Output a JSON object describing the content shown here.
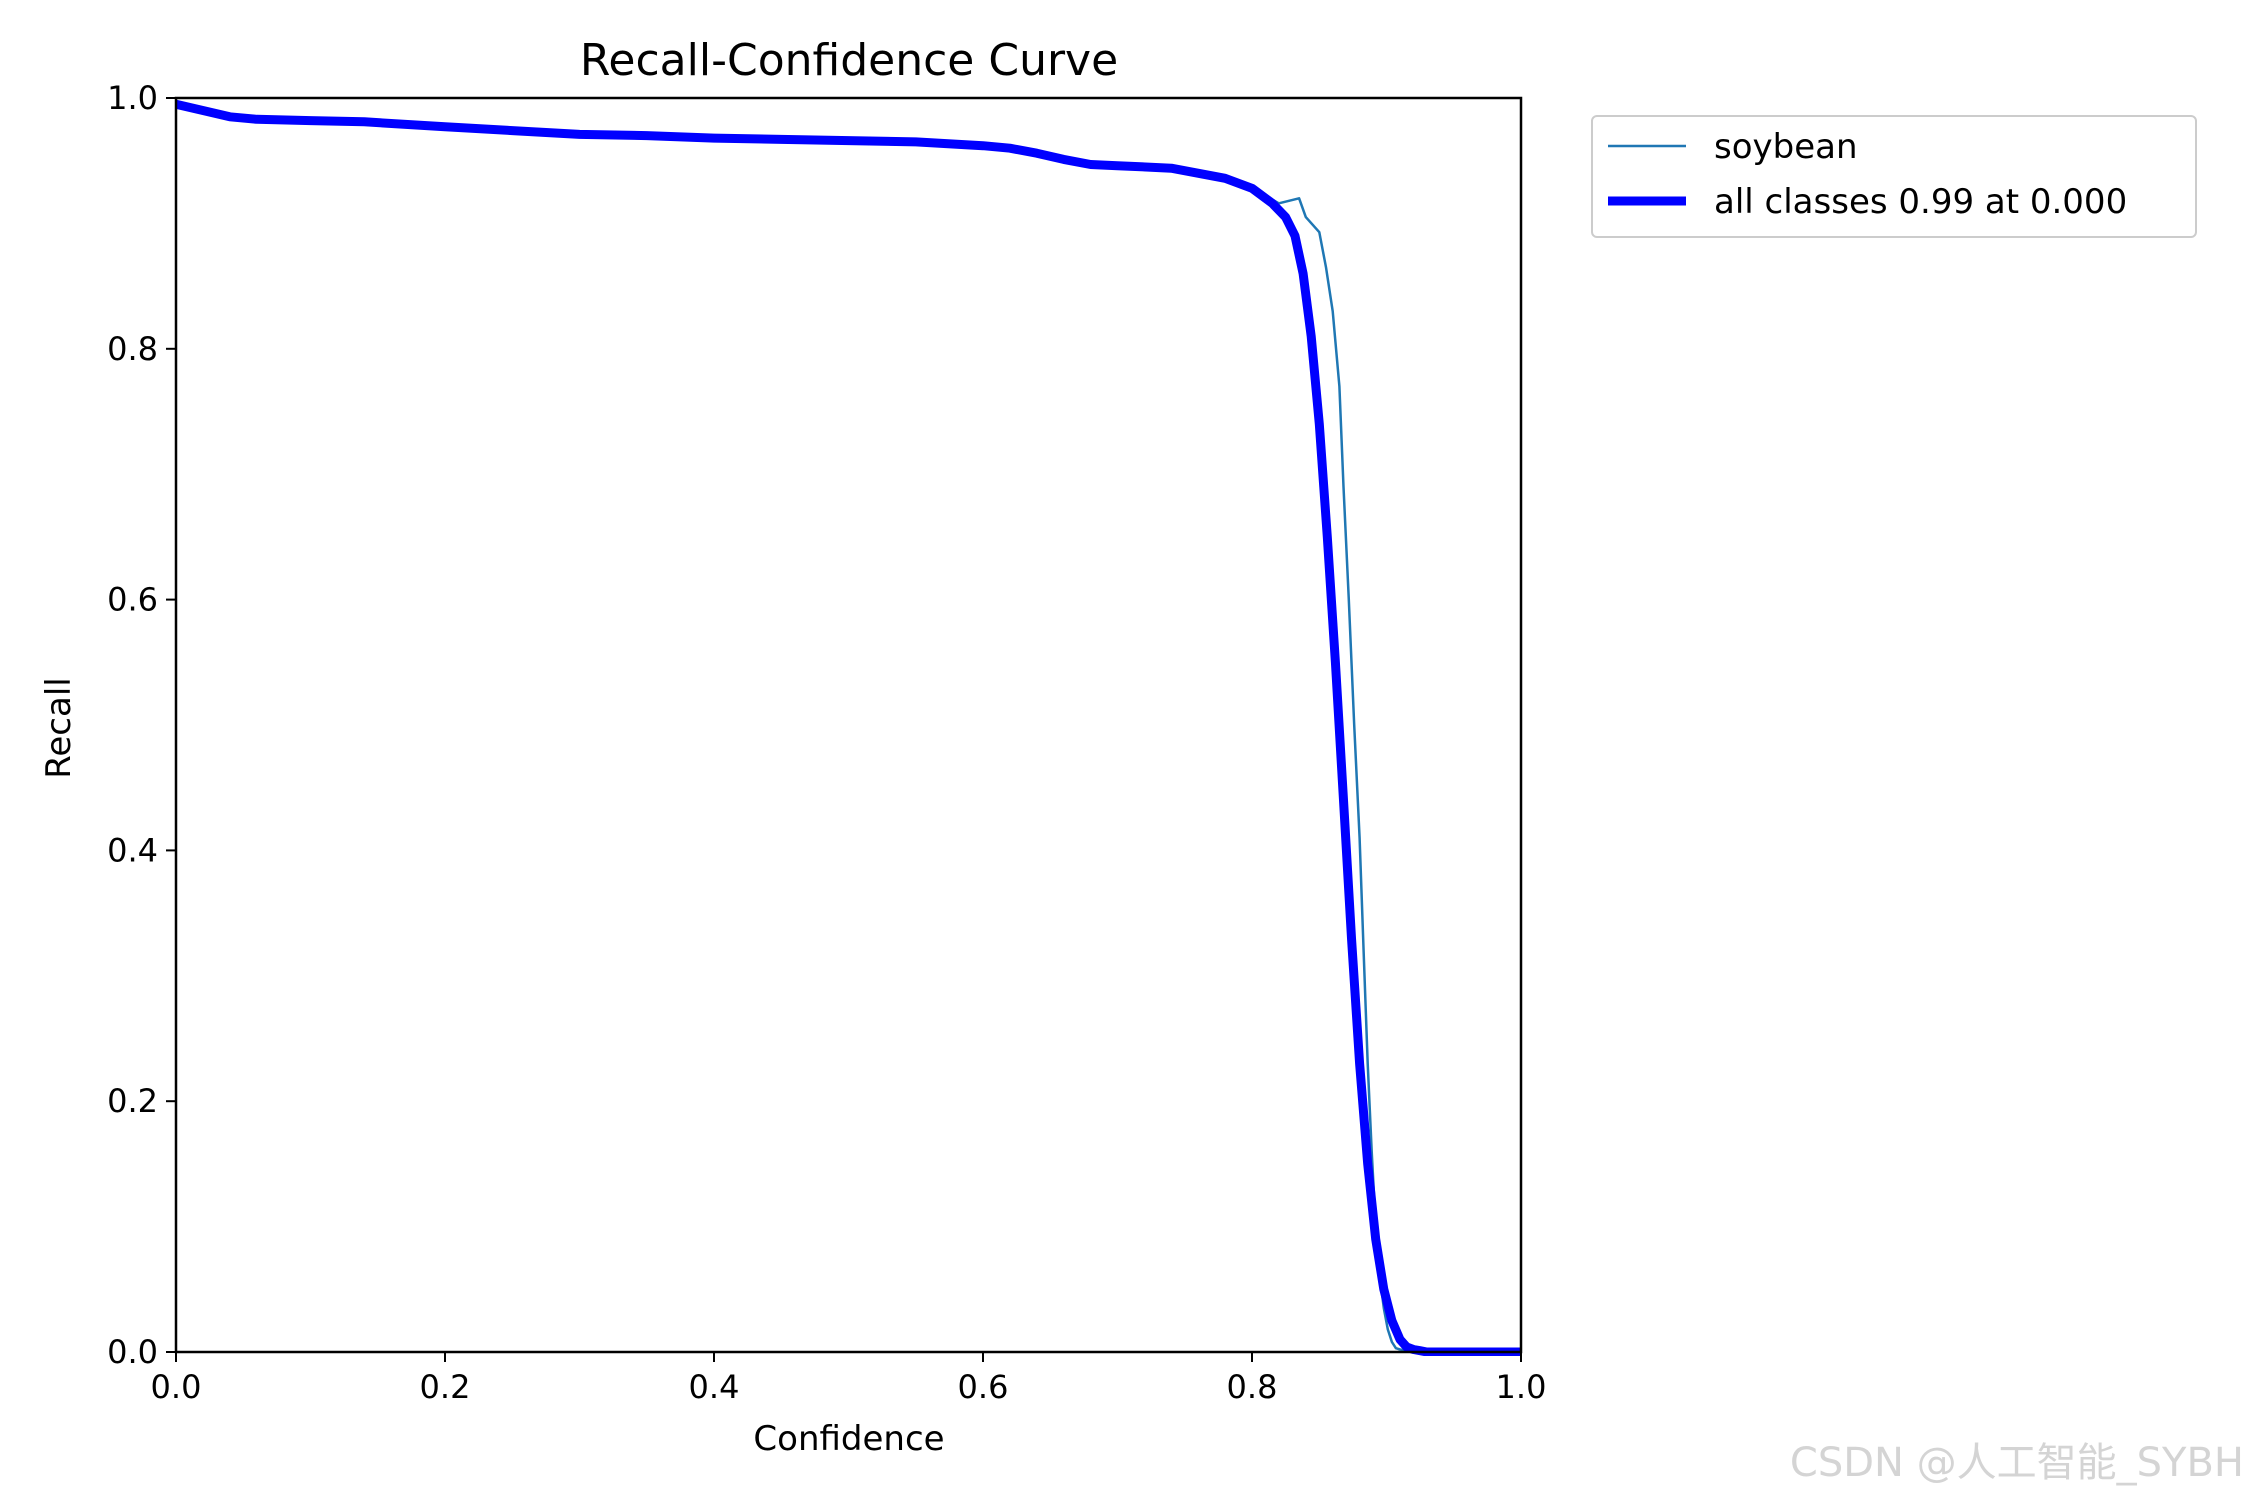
{
  "chart_data": {
    "type": "line",
    "title": "Recall-Confidence Curve",
    "xlabel": "Confidence",
    "ylabel": "Recall",
    "xlim": [
      0.0,
      1.0
    ],
    "ylim": [
      0.0,
      1.0
    ],
    "xticks": [
      "0.0",
      "0.2",
      "0.4",
      "0.6",
      "0.8",
      "1.0"
    ],
    "yticks": [
      "0.0",
      "0.2",
      "0.4",
      "0.6",
      "0.8",
      "1.0"
    ],
    "grid": false,
    "legend_position": "outside-upper-right",
    "series": [
      {
        "name": "soybean",
        "color": "#1f77b4",
        "x": [
          0.0,
          0.02,
          0.04,
          0.06,
          0.1,
          0.14,
          0.2,
          0.25,
          0.3,
          0.35,
          0.4,
          0.45,
          0.5,
          0.55,
          0.6,
          0.62,
          0.64,
          0.66,
          0.68,
          0.7,
          0.74,
          0.78,
          0.8,
          0.82,
          0.835,
          0.84,
          0.85,
          0.855,
          0.86,
          0.865,
          0.868,
          0.872,
          0.876,
          0.88,
          0.883,
          0.886,
          0.889,
          0.892,
          0.895,
          0.898,
          0.901,
          0.904,
          0.907,
          0.91,
          0.915,
          0.92,
          0.93,
          0.95,
          1.0
        ],
        "y": [
          0.995,
          0.99,
          0.985,
          0.983,
          0.982,
          0.981,
          0.977,
          0.974,
          0.971,
          0.97,
          0.968,
          0.967,
          0.966,
          0.965,
          0.962,
          0.96,
          0.956,
          0.951,
          0.947,
          0.946,
          0.944,
          0.936,
          0.928,
          0.916,
          0.92,
          0.905,
          0.893,
          0.865,
          0.83,
          0.77,
          0.69,
          0.6,
          0.5,
          0.41,
          0.32,
          0.23,
          0.16,
          0.1,
          0.06,
          0.035,
          0.018,
          0.008,
          0.003,
          0.002,
          0.001,
          0.0,
          0.0,
          0.0,
          0.0
        ]
      },
      {
        "name": "all classes 0.99 at 0.000",
        "color": "#0000ff",
        "x": [
          0.0,
          0.02,
          0.04,
          0.06,
          0.1,
          0.14,
          0.2,
          0.25,
          0.3,
          0.35,
          0.4,
          0.45,
          0.5,
          0.55,
          0.6,
          0.62,
          0.64,
          0.66,
          0.68,
          0.7,
          0.74,
          0.78,
          0.8,
          0.815,
          0.825,
          0.832,
          0.838,
          0.844,
          0.85,
          0.856,
          0.862,
          0.868,
          0.874,
          0.88,
          0.886,
          0.892,
          0.898,
          0.904,
          0.91,
          0.915,
          0.92,
          0.925,
          0.93,
          0.95,
          1.0
        ],
        "y": [
          0.995,
          0.99,
          0.985,
          0.983,
          0.982,
          0.981,
          0.977,
          0.974,
          0.971,
          0.97,
          0.968,
          0.967,
          0.966,
          0.965,
          0.962,
          0.96,
          0.956,
          0.951,
          0.947,
          0.946,
          0.944,
          0.936,
          0.928,
          0.916,
          0.905,
          0.89,
          0.86,
          0.81,
          0.74,
          0.65,
          0.55,
          0.44,
          0.33,
          0.23,
          0.15,
          0.09,
          0.05,
          0.025,
          0.01,
          0.004,
          0.002,
          0.001,
          0.0,
          0.0,
          0.0
        ]
      }
    ]
  },
  "watermark": "CSDN @人工智能_SYBH"
}
